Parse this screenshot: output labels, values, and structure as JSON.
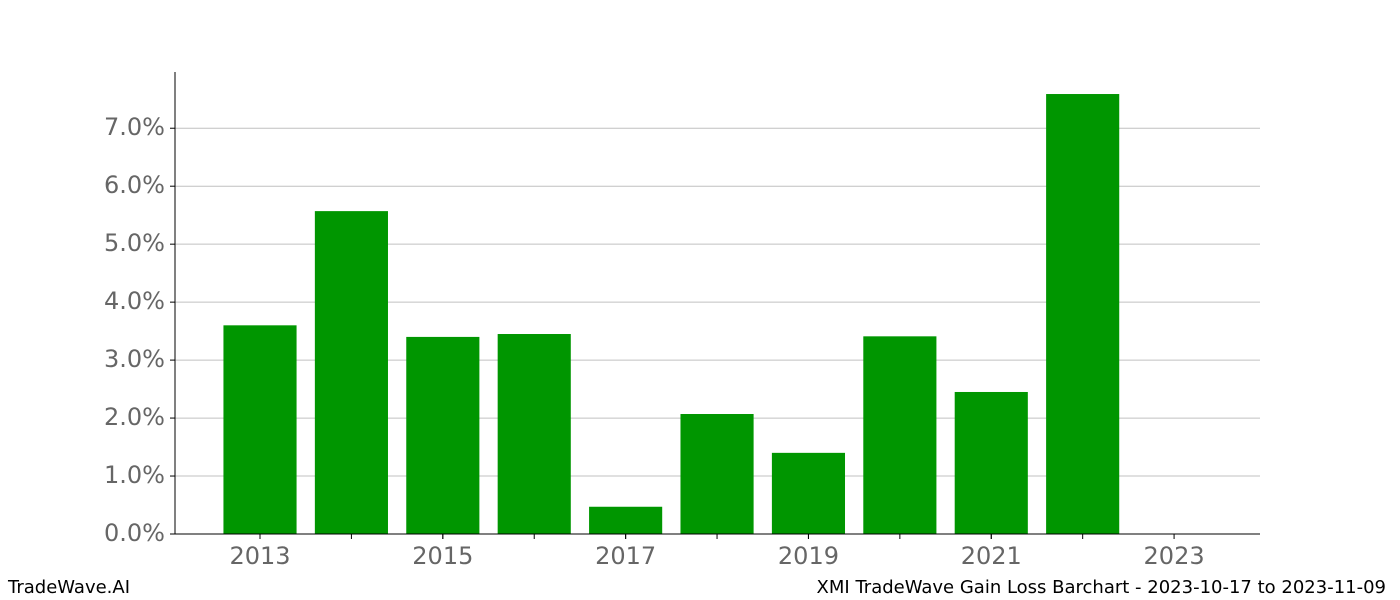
{
  "chart_data": {
    "type": "bar",
    "x": [
      2013,
      2014,
      2015,
      2016,
      2017,
      2018,
      2019,
      2020,
      2021,
      2022
    ],
    "values": [
      3.6,
      5.57,
      3.4,
      3.45,
      0.47,
      2.07,
      1.4,
      3.41,
      2.45,
      7.59
    ],
    "color": "#009600",
    "xlim": [
      2012.07,
      2023.94
    ],
    "xticks": [
      2013,
      2015,
      2017,
      2019,
      2021,
      2023
    ],
    "ylim": [
      0,
      7.97
    ],
    "yticks": [
      {
        "value": 0,
        "label": "0.0%"
      },
      {
        "value": 1,
        "label": "1.0%"
      },
      {
        "value": 2,
        "label": "2.0%"
      },
      {
        "value": 3,
        "label": "3.0%"
      },
      {
        "value": 4,
        "label": "4.0%"
      },
      {
        "value": 5,
        "label": "5.0%"
      },
      {
        "value": 6,
        "label": "6.0%"
      },
      {
        "value": 7,
        "label": "7.0%"
      }
    ],
    "grid": true
  },
  "footer": {
    "brand": "TradeWave.AI",
    "caption": "XMI TradeWave Gain Loss Barchart - 2023-10-17 to 2023-11-09"
  }
}
